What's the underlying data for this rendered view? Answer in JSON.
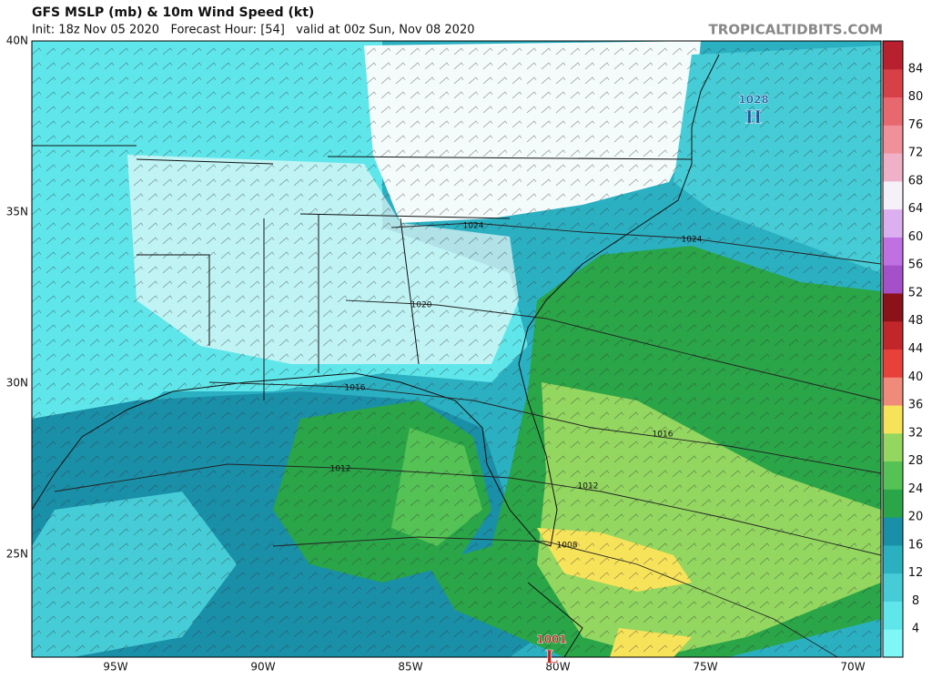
{
  "header": {
    "title": "GFS MSLP (mb) & 10m Wind Speed (kt)",
    "subtitle": "Init: 18z Nov 05 2020   Forecast Hour: [54]   valid at 00z Sun, Nov 08 2020",
    "watermark": "TROPICALTIDBITS.COM"
  },
  "map": {
    "lat_labels": [
      "40N",
      "35N",
      "30N",
      "25N"
    ],
    "lon_labels": [
      "95W",
      "90W",
      "85W",
      "80W",
      "75W",
      "70W"
    ],
    "isobar_labels": [
      "1024",
      "1024",
      "1020",
      "1016",
      "1016",
      "1012",
      "1012",
      "1008"
    ],
    "pressure_centers": [
      {
        "value": "1028",
        "symbol": "H"
      },
      {
        "value": "1001",
        "symbol": "L"
      }
    ]
  },
  "colorbar": {
    "labels": [
      "4",
      "8",
      "12",
      "16",
      "20",
      "24",
      "28",
      "32",
      "36",
      "40",
      "44",
      "48",
      "52",
      "56",
      "60",
      "64",
      "68",
      "72",
      "76",
      "80",
      "84"
    ],
    "colors": [
      "#7ff7f7",
      "#5fe6ea",
      "#45ccd6",
      "#2bb0c2",
      "#1a8fa8",
      "#2aa548",
      "#54c254",
      "#93d660",
      "#f7e35a",
      "#f08a7a",
      "#e8413a",
      "#c0262a",
      "#8a1218",
      "#a450c8",
      "#c070e0",
      "#dcb0f0",
      "#f6f0f8",
      "#f0b0c8",
      "#f09098",
      "#e86870",
      "#d84048",
      "#b82030"
    ]
  }
}
